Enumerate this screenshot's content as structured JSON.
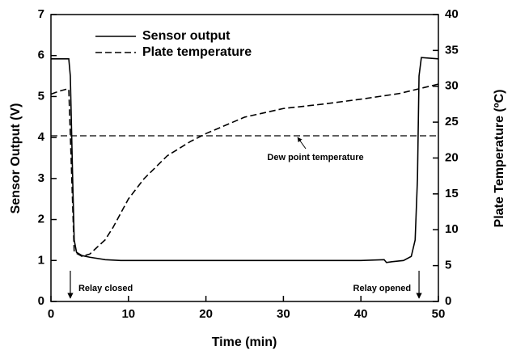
{
  "chart_data": {
    "type": "line",
    "xlabel": "Time (min)",
    "ylabel": "Sensor Output (V)",
    "y2label": "Plate Temperature (ºC)",
    "xlim": [
      0,
      50
    ],
    "xticks": [
      0,
      10,
      20,
      30,
      40,
      50
    ],
    "ylim": [
      0,
      7
    ],
    "yticks": [
      0,
      1,
      2,
      3,
      4,
      5,
      6,
      7
    ],
    "y2lim": [
      0,
      40
    ],
    "y2ticks": [
      0,
      5,
      10,
      15,
      20,
      25,
      30,
      35,
      40
    ],
    "legend": "upper left",
    "series": [
      {
        "name": "Sensor output",
        "color": "#000000",
        "dash": "solid",
        "x": [
          0,
          2.3,
          2.5,
          2.8,
          3.0,
          3.3,
          4,
          5,
          7,
          9,
          20,
          30,
          40,
          43,
          43.3,
          44,
          45.5,
          46.5,
          47,
          47.3,
          47.5,
          47.8,
          50
        ],
        "values": [
          5.92,
          5.92,
          5.5,
          3,
          1.5,
          1.2,
          1.12,
          1.08,
          1.02,
          1.0,
          1.0,
          1.0,
          1.0,
          1.02,
          0.95,
          0.97,
          1.0,
          1.1,
          1.5,
          3,
          5.5,
          5.95,
          5.92
        ]
      },
      {
        "name": "Plate temperature",
        "color": "#000000",
        "dash": "dashed",
        "axis": "y2",
        "x": [
          0,
          1,
          2,
          2.3,
          2.6,
          3,
          4,
          5,
          7,
          8,
          10,
          12,
          15,
          18,
          20,
          25,
          30,
          35,
          40,
          45,
          50
        ],
        "values": [
          28.9,
          29.3,
          29.6,
          29.6,
          20,
          6.9,
          6.3,
          6.6,
          8.6,
          10.3,
          14.3,
          17.1,
          20.3,
          22.3,
          23.4,
          25.7,
          26.9,
          27.5,
          28.2,
          29.0,
          30.3
        ]
      }
    ],
    "reference_lines": [
      {
        "value": 23.1,
        "axis": "y2",
        "label": "Dew point temperature"
      }
    ],
    "annotations": [
      {
        "x": 2.5,
        "label": "Relay closed"
      },
      {
        "x": 47.5,
        "label": "Relay opened"
      }
    ]
  }
}
